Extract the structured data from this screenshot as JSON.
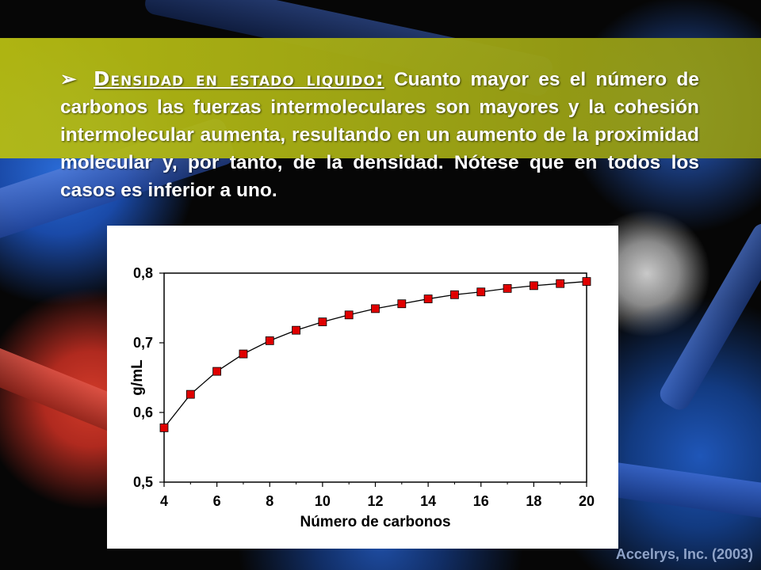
{
  "slide": {
    "bullet_glyph": "➢",
    "heading": "Densidad en estado liquido:",
    "body": "Cuanto mayor es el número de carbonos las fuerzas intermoleculares son mayores y la cohesión intermolecular aumenta, resultando en un aumento de la proximidad molecular y, por tanto, de la densidad. Nótese que en todos los casos es inferior a uno.",
    "credit": "Accelrys, Inc. (2003)"
  },
  "chart_data": {
    "type": "line",
    "title": "",
    "xlabel": "Número de carbonos",
    "ylabel": "g/mL",
    "xlim": [
      4,
      20
    ],
    "ylim": [
      0.5,
      0.8
    ],
    "x_ticks": [
      4,
      6,
      8,
      10,
      12,
      14,
      16,
      18,
      20
    ],
    "y_ticks": [
      0.5,
      0.6,
      0.7,
      0.8
    ],
    "y_tick_labels": [
      "0,5",
      "0,6",
      "0,7",
      "0,8"
    ],
    "grid": false,
    "series": [
      {
        "marker": "square",
        "color": "#e00000",
        "x": [
          4,
          5,
          6,
          7,
          8,
          9,
          10,
          11,
          12,
          13,
          14,
          15,
          16,
          17,
          18,
          19,
          20
        ],
        "values": [
          0.578,
          0.626,
          0.659,
          0.684,
          0.703,
          0.718,
          0.73,
          0.74,
          0.749,
          0.756,
          0.763,
          0.769,
          0.773,
          0.778,
          0.782,
          0.785,
          0.788
        ]
      }
    ]
  }
}
